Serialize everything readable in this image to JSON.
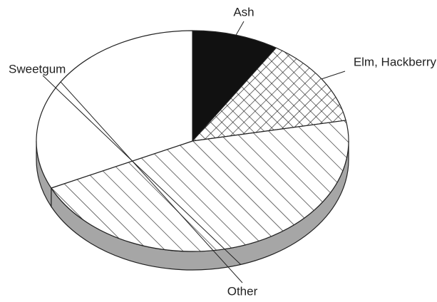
{
  "chart_data": {
    "type": "pie",
    "categories": [
      "Ash",
      "Elm, Hackberry",
      "Sweetgum",
      "Other"
    ],
    "values": [
      9,
      13,
      46,
      32
    ],
    "fills": [
      "#111111",
      "crosshatch",
      "hatch",
      "#ffffff"
    ],
    "side_color": "#a6a6a6",
    "three_d": true
  }
}
